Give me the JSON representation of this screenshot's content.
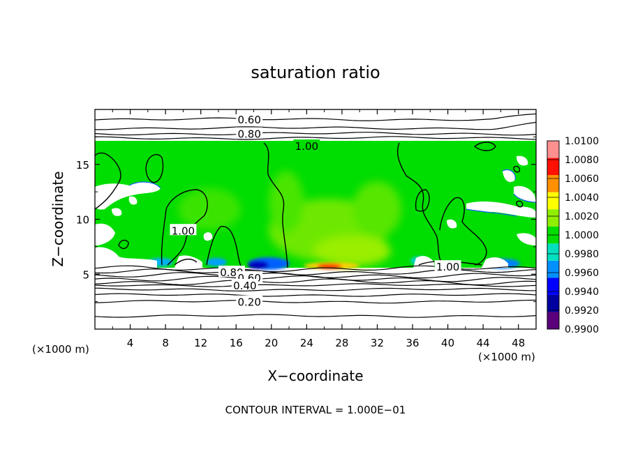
{
  "chart_data": {
    "type": "heatmap",
    "title": "saturation ratio",
    "xlabel": "X−coordinate",
    "ylabel": "Z−coordinate",
    "x_unit_label": "(×1000 m)",
    "y_unit_label": "(×1000 m)",
    "xlim": [
      0,
      50
    ],
    "ylim": [
      0,
      20
    ],
    "x_ticks": [
      4,
      8,
      12,
      16,
      20,
      24,
      28,
      32,
      36,
      40,
      44,
      48
    ],
    "y_ticks": [
      5,
      10,
      15
    ],
    "colorbar": {
      "levels": [
        "0.9900",
        "0.9920",
        "0.9940",
        "0.9960",
        "0.9980",
        "1.0000",
        "1.0020",
        "1.0040",
        "1.0060",
        "1.0080",
        "1.0100"
      ],
      "colors": [
        "#5a007a",
        "#0000a0",
        "#0000ff",
        "#0090ff",
        "#00e0c0",
        "#00dd00",
        "#90ee00",
        "#ffff00",
        "#ff9000",
        "#ff1000",
        "#ff9090"
      ]
    },
    "contour_lines": [
      {
        "label": "0.60",
        "z": 19.1,
        "x": 17.5
      },
      {
        "label": "0.80",
        "z": 17.8,
        "x": 17.5
      },
      {
        "label": "1.00",
        "z": 16.7,
        "x": 24.0
      },
      {
        "label": "1.00",
        "z": 9.0,
        "x": 10.0
      },
      {
        "label": "1.00",
        "z": 5.7,
        "x": 40.0
      },
      {
        "label": "0.80",
        "z": 5.2,
        "x": 15.5
      },
      {
        "label": "0.60",
        "z": 4.7,
        "x": 17.5
      },
      {
        "label": "0.40",
        "z": 4.0,
        "x": 17.0
      },
      {
        "label": "0.20",
        "z": 2.5,
        "x": 17.5
      }
    ],
    "background_contour_z": [
      1.2,
      2.5,
      3.1,
      3.6,
      4.0,
      4.3,
      4.6,
      4.9,
      5.2,
      5.5,
      17.4,
      17.8,
      18.3,
      19.1
    ],
    "contour_interval_text": "CONTOUR INTERVAL =  1.000E−01"
  }
}
